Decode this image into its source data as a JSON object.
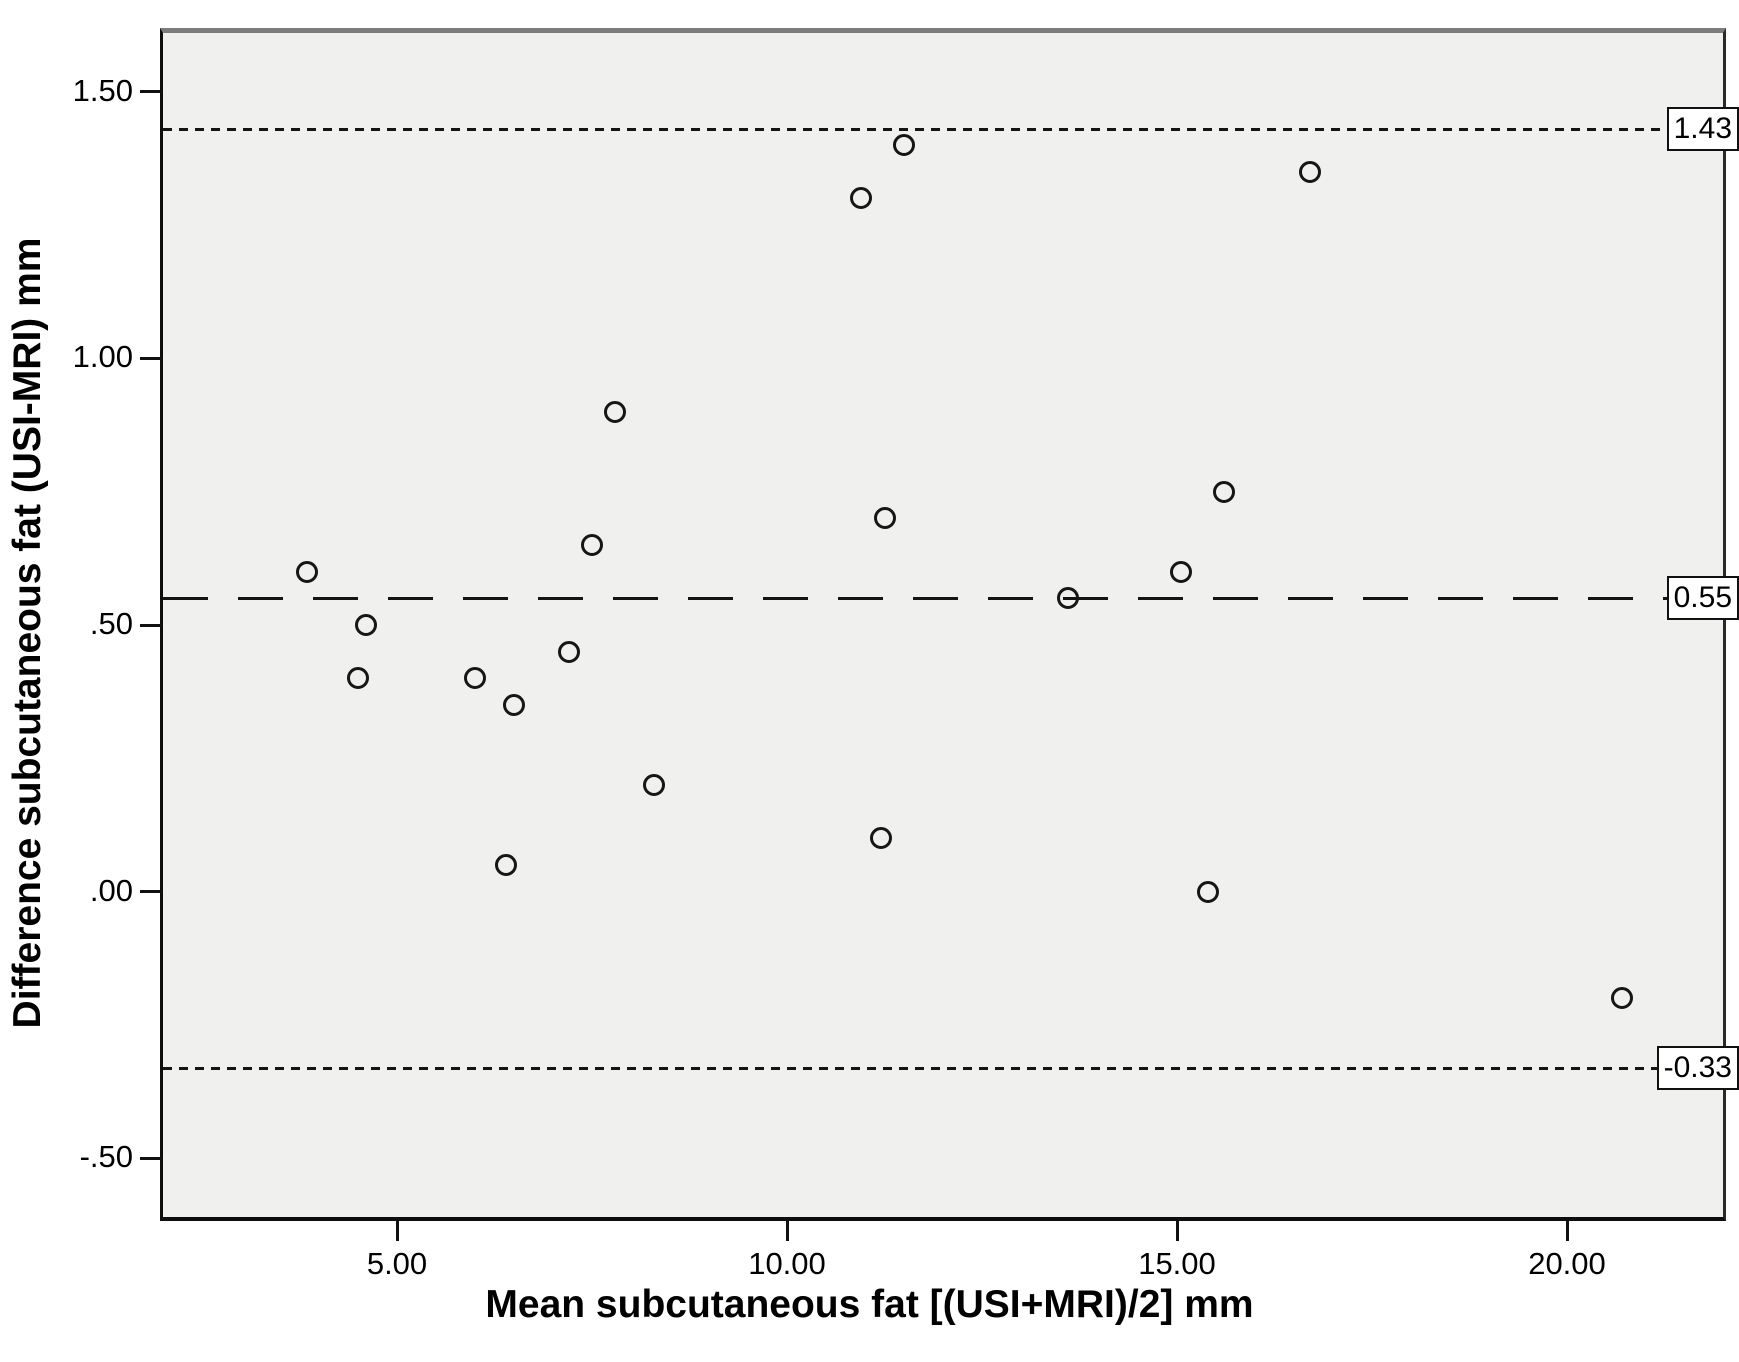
{
  "chart_data": {
    "type": "scatter",
    "title": "",
    "xlabel": "Mean subcutaneous fat [(USI+MRI)/2] mm",
    "ylabel": "Difference subcutaneous fat (USI-MRI) mm",
    "xlim": [
      2,
      22
    ],
    "ylim": [
      -0.61,
      1.61
    ],
    "grid": false,
    "legend_position": "none",
    "marker": "open-circle",
    "x_ticks": [
      {
        "value": 5,
        "label": "5.00"
      },
      {
        "value": 10,
        "label": "10.00"
      },
      {
        "value": 15,
        "label": "15.00"
      },
      {
        "value": 20,
        "label": "20.00"
      }
    ],
    "y_ticks": [
      {
        "value": 1.5,
        "label": "1.50"
      },
      {
        "value": 1.0,
        "label": "1.00"
      },
      {
        "value": 0.5,
        "label": ".50"
      },
      {
        "value": 0.0,
        "label": ".00"
      },
      {
        "value": -0.5,
        "label": "-.50"
      }
    ],
    "reference_lines": [
      {
        "value": 1.43,
        "label": "1.43",
        "style": "dotted",
        "meaning": "upper limit of agreement"
      },
      {
        "value": 0.55,
        "label": "0.55",
        "style": "long-dash",
        "meaning": "mean difference"
      },
      {
        "value": -0.33,
        "label": "-0.33",
        "style": "dotted",
        "meaning": "lower limit of agreement"
      }
    ],
    "points": [
      {
        "x": 3.85,
        "y": 0.6
      },
      {
        "x": 4.6,
        "y": 0.5
      },
      {
        "x": 4.5,
        "y": 0.4
      },
      {
        "x": 6.0,
        "y": 0.4
      },
      {
        "x": 6.5,
        "y": 0.35
      },
      {
        "x": 7.2,
        "y": 0.45
      },
      {
        "x": 7.5,
        "y": 0.65
      },
      {
        "x": 7.8,
        "y": 0.9
      },
      {
        "x": 8.3,
        "y": 0.2
      },
      {
        "x": 6.4,
        "y": 0.05
      },
      {
        "x": 10.95,
        "y": 1.3
      },
      {
        "x": 11.5,
        "y": 1.4
      },
      {
        "x": 11.25,
        "y": 0.7
      },
      {
        "x": 11.2,
        "y": 0.1
      },
      {
        "x": 13.6,
        "y": 0.55
      },
      {
        "x": 15.05,
        "y": 0.6
      },
      {
        "x": 15.6,
        "y": 0.75
      },
      {
        "x": 15.4,
        "y": 0.0
      },
      {
        "x": 16.7,
        "y": 1.35
      },
      {
        "x": 20.7,
        "y": -0.2
      }
    ],
    "colors": {
      "plot_background": "#f0f0ee",
      "marker_stroke": "#161616",
      "line_color": "#141414",
      "label_box_background": "#ffffff",
      "frame_top": "#7c7c7c"
    }
  },
  "layout_note": "Bland-Altman plot of ultrasound (USI) vs MRI subcutaneous fat thickness"
}
